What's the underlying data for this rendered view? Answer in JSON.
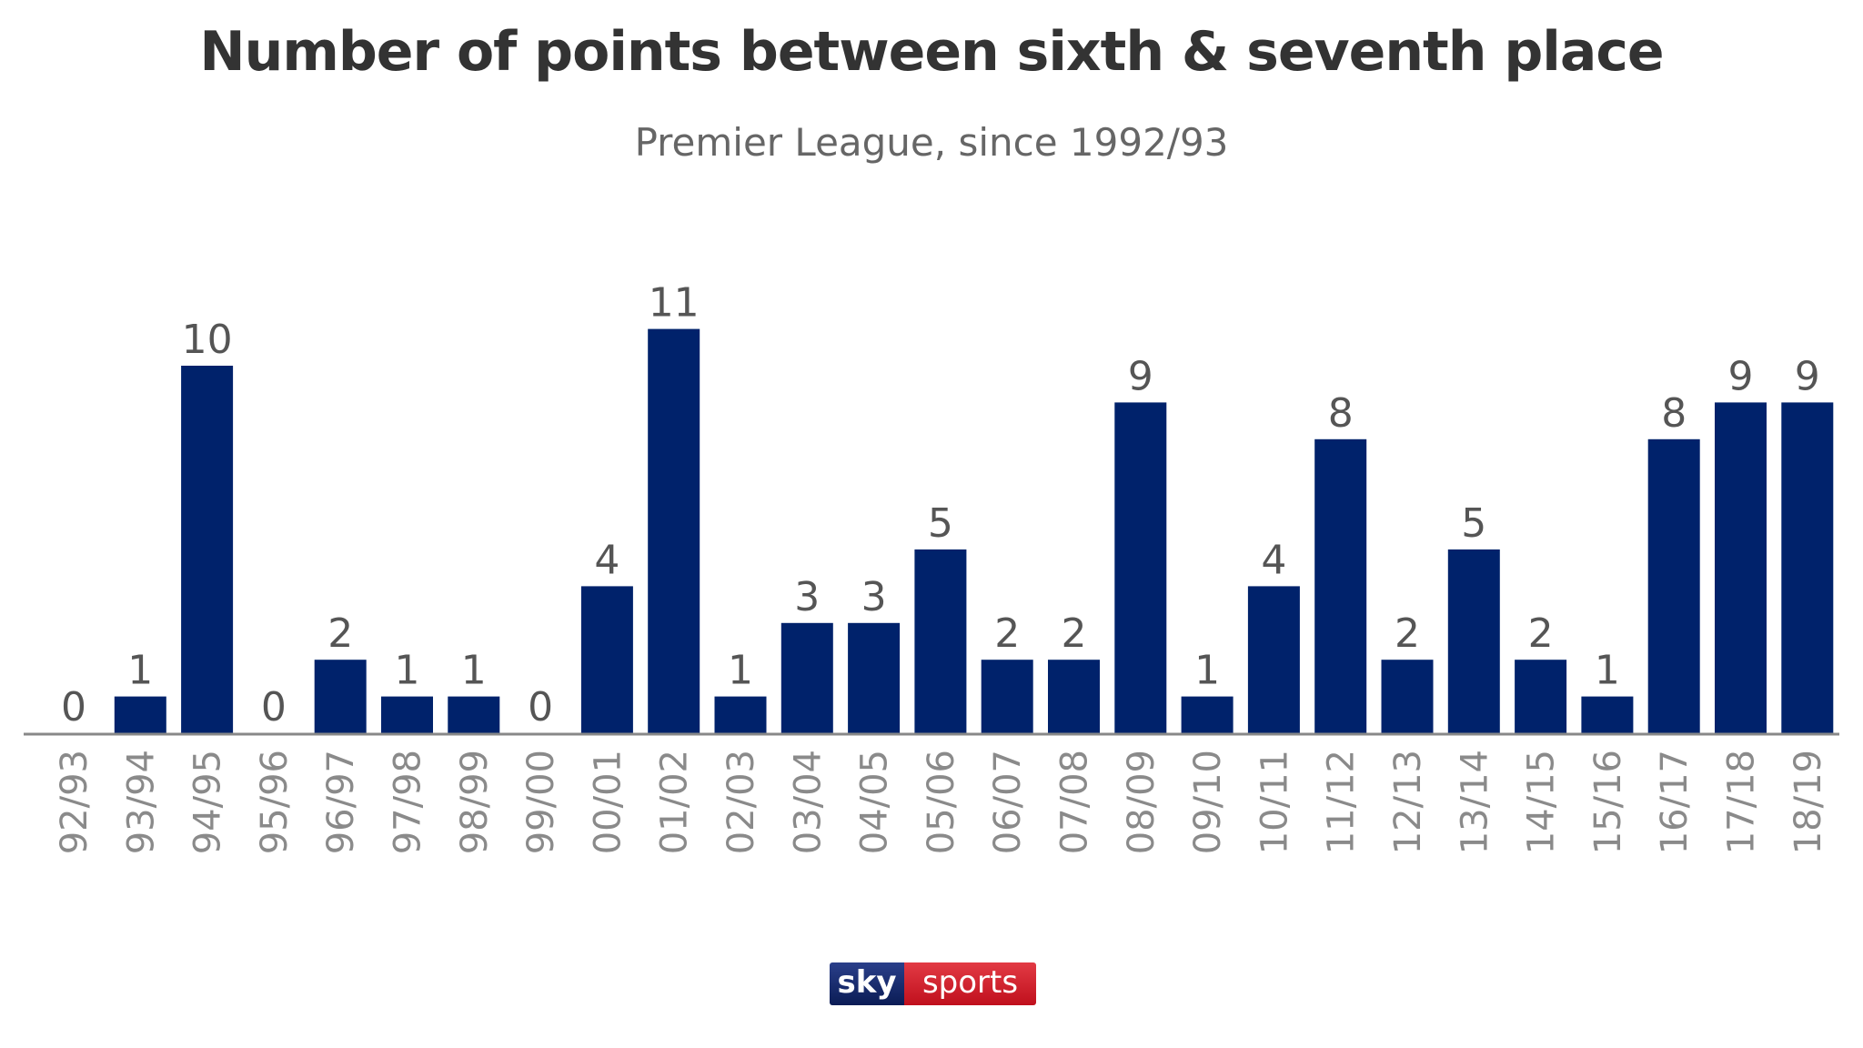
{
  "chart_data": {
    "type": "bar",
    "title": "Number of points between sixth & seventh place",
    "subtitle": "Premier League, since 1992/93",
    "xlabel": "",
    "ylabel": "",
    "ylim": [
      0,
      11
    ],
    "grid": false,
    "categories": [
      "92/93",
      "93/94",
      "94/95",
      "95/96",
      "96/97",
      "97/98",
      "98/99",
      "99/00",
      "00/01",
      "01/02",
      "02/03",
      "03/04",
      "04/05",
      "05/06",
      "06/07",
      "07/08",
      "08/09",
      "09/10",
      "10/11",
      "11/12",
      "12/13",
      "13/14",
      "14/15",
      "15/16",
      "16/17",
      "17/18",
      "18/19"
    ],
    "values": [
      0,
      1,
      10,
      0,
      2,
      1,
      1,
      0,
      4,
      11,
      1,
      3,
      3,
      5,
      2,
      2,
      9,
      1,
      4,
      8,
      2,
      5,
      2,
      1,
      8,
      9,
      9
    ],
    "bar_color": "#00226b"
  },
  "logo": {
    "left": "sky",
    "right": "sports"
  }
}
